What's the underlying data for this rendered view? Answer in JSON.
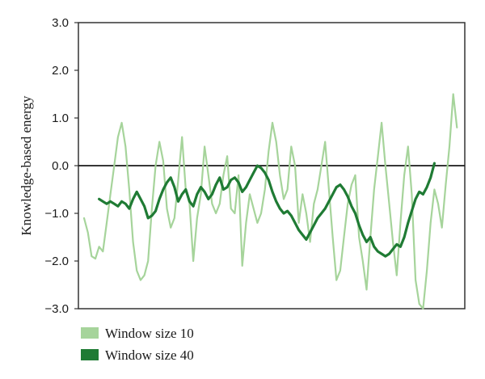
{
  "chart_data": {
    "type": "line",
    "ylabel": "Knowledge-based energy",
    "xlabel": "",
    "ylim": [
      -3.0,
      3.0
    ],
    "yticks": [
      "3.0",
      "2.0",
      "1.0",
      "0.0",
      "-1.0",
      "-2.0",
      "-3.0"
    ],
    "xlim": [
      0,
      100
    ],
    "reference_line_y": 0,
    "grid": false,
    "legend_position": "bottom-left",
    "series": [
      {
        "name": "Window size 10",
        "color": "#a6d49b",
        "x": [
          0,
          1,
          2,
          3,
          4,
          5,
          6,
          7,
          8,
          9,
          10,
          11,
          12,
          13,
          14,
          15,
          16,
          17,
          18,
          19,
          20,
          21,
          22,
          23,
          24,
          25,
          26,
          27,
          28,
          29,
          30,
          31,
          32,
          33,
          34,
          35,
          36,
          37,
          38,
          39,
          40,
          41,
          42,
          43,
          44,
          45,
          46,
          47,
          48,
          49,
          50,
          51,
          52,
          53,
          54,
          55,
          56,
          57,
          58,
          59,
          60,
          61,
          62,
          63,
          64,
          65,
          66,
          67,
          68,
          69,
          70,
          71,
          72,
          73,
          74,
          75,
          76,
          77,
          78,
          79,
          80,
          81,
          82,
          83,
          84,
          85,
          86,
          87,
          88,
          89,
          90,
          91,
          92,
          93,
          94,
          95,
          96,
          97,
          98,
          99
        ],
        "values": [
          -1.1,
          -1.4,
          -1.9,
          -1.95,
          -1.7,
          -1.8,
          -1.2,
          -0.6,
          0.0,
          0.6,
          0.9,
          0.4,
          -0.5,
          -1.6,
          -2.2,
          -2.4,
          -2.3,
          -2.0,
          -0.9,
          0.0,
          0.5,
          0.1,
          -0.9,
          -1.3,
          -1.1,
          -0.3,
          0.6,
          -0.5,
          -0.8,
          -2.0,
          -1.1,
          -0.6,
          0.4,
          -0.2,
          -0.8,
          -1.0,
          -0.8,
          -0.2,
          0.2,
          -0.9,
          -1.0,
          -0.2,
          -2.1,
          -1.2,
          -0.6,
          -0.9,
          -1.2,
          -1.0,
          -0.5,
          0.3,
          0.9,
          0.5,
          -0.2,
          -0.7,
          -0.5,
          0.4,
          0.0,
          -1.2,
          -0.6,
          -1.0,
          -1.6,
          -0.8,
          -0.5,
          0.0,
          0.5,
          -0.5,
          -1.5,
          -2.4,
          -2.2,
          -1.5,
          -0.8,
          -0.4,
          -0.2,
          -1.5,
          -2.0,
          -2.6,
          -1.5,
          -0.5,
          0.2,
          0.9,
          0.0,
          -0.8,
          -1.6,
          -2.3,
          -1.2,
          -0.2,
          0.4,
          -0.6,
          -2.4,
          -2.9,
          -3.0,
          -2.2,
          -1.2,
          -0.5,
          -0.8,
          -1.3,
          -0.4,
          0.4,
          1.5,
          0.8
        ]
      },
      {
        "name": "Window size 40",
        "color": "#1f7b34",
        "x": [
          4,
          5,
          6,
          7,
          8,
          9,
          10,
          11,
          12,
          13,
          14,
          15,
          16,
          17,
          18,
          19,
          20,
          21,
          22,
          23,
          24,
          25,
          26,
          27,
          28,
          29,
          30,
          31,
          32,
          33,
          34,
          35,
          36,
          37,
          38,
          39,
          40,
          41,
          42,
          43,
          44,
          45,
          46,
          47,
          48,
          49,
          50,
          51,
          52,
          53,
          54,
          55,
          56,
          57,
          58,
          59,
          60,
          61,
          62,
          63,
          64,
          65,
          66,
          67,
          68,
          69,
          70,
          71,
          72,
          73,
          74,
          75,
          76,
          77,
          78,
          79,
          80,
          81,
          82,
          83,
          84,
          85,
          86,
          87,
          88,
          89,
          90,
          91,
          92,
          93
        ],
        "values": [
          -0.7,
          -0.75,
          -0.8,
          -0.75,
          -0.8,
          -0.85,
          -0.75,
          -0.8,
          -0.9,
          -0.7,
          -0.55,
          -0.7,
          -0.85,
          -1.1,
          -1.05,
          -0.95,
          -0.7,
          -0.5,
          -0.35,
          -0.25,
          -0.45,
          -0.75,
          -0.6,
          -0.5,
          -0.75,
          -0.85,
          -0.6,
          -0.45,
          -0.55,
          -0.7,
          -0.6,
          -0.4,
          -0.25,
          -0.5,
          -0.45,
          -0.3,
          -0.25,
          -0.35,
          -0.55,
          -0.45,
          -0.3,
          -0.15,
          0.0,
          -0.05,
          -0.15,
          -0.3,
          -0.55,
          -0.75,
          -0.9,
          -1.0,
          -0.95,
          -1.05,
          -1.2,
          -1.35,
          -1.45,
          -1.55,
          -1.4,
          -1.25,
          -1.1,
          -1.0,
          -0.9,
          -0.75,
          -0.6,
          -0.45,
          -0.4,
          -0.5,
          -0.65,
          -0.85,
          -1.0,
          -1.25,
          -1.45,
          -1.6,
          -1.5,
          -1.7,
          -1.8,
          -1.85,
          -1.9,
          -1.85,
          -1.75,
          -1.65,
          -1.7,
          -1.5,
          -1.2,
          -0.95,
          -0.7,
          -0.55,
          -0.6,
          -0.45,
          -0.25,
          0.05
        ]
      }
    ]
  }
}
